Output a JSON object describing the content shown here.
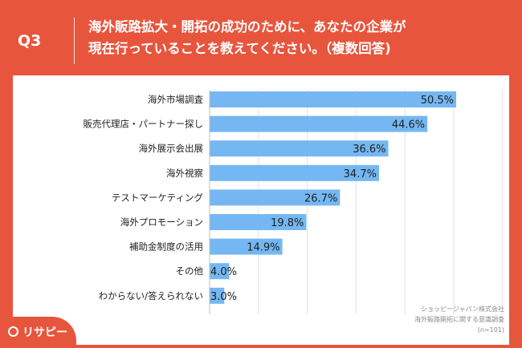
{
  "header": {
    "q_label": "Q3",
    "question_line1": "海外販路拡大・開拓の成功のために、あなたの企業が",
    "question_line2": "現在行っていることを教えてください。（複数回答)"
  },
  "source": {
    "line1": "ショッピージャパン株式会社",
    "line2": "海外販路開拓に関する意識調査",
    "line3": "(n=101)"
  },
  "logo": {
    "text": "リサピー",
    "icon": "pin-icon"
  },
  "colors": {
    "background": "#E8553D",
    "bar": "#74B7F2",
    "grid": "#E2E2E2"
  },
  "chart_data": {
    "type": "bar",
    "orientation": "horizontal",
    "categories": [
      "海外市場調査",
      "販売代理店・パートナー探し",
      "海外展示会出展",
      "海外視察",
      "テストマーケティング",
      "海外プロモーション",
      "補助金制度の活用",
      "その他",
      "わからない/答えられない"
    ],
    "values": [
      50.5,
      44.6,
      36.6,
      34.7,
      26.7,
      19.8,
      14.9,
      4.0,
      3.0
    ],
    "labels": [
      "50.5%",
      "44.6%",
      "36.6%",
      "34.7%",
      "26.7%",
      "19.8%",
      "14.9%",
      "4.0%",
      "3.0%"
    ],
    "xlim": [
      0,
      60
    ],
    "grid": true
  }
}
